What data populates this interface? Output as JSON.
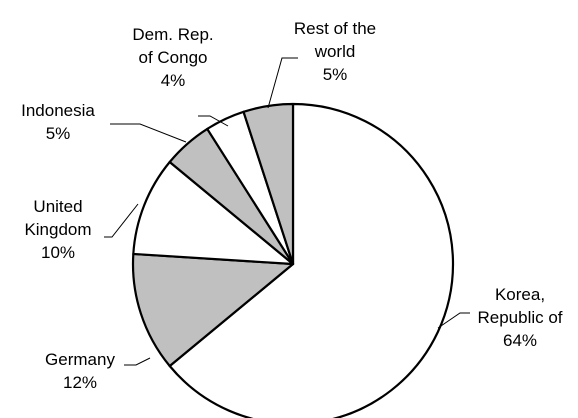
{
  "chart_data": {
    "type": "pie",
    "title": "",
    "start": "12 o'clock, clockwise",
    "slices": [
      {
        "category": "Korea, Republic of",
        "label_lines": [
          "Korea,",
          "Republic of"
        ],
        "pct_label": "64%",
        "value": 64,
        "fill": "#ffffff"
      },
      {
        "category": "Germany",
        "label_lines": [
          "Germany"
        ],
        "pct_label": "12%",
        "value": 12,
        "fill": "#c0c0c0"
      },
      {
        "category": "United Kingdom",
        "label_lines": [
          "United",
          "Kingdom"
        ],
        "pct_label": "10%",
        "value": 10,
        "fill": "#ffffff"
      },
      {
        "category": "Indonesia",
        "label_lines": [
          "Indonesia"
        ],
        "pct_label": "5%",
        "value": 5,
        "fill": "#c0c0c0"
      },
      {
        "category": "Dem. Rep. of Congo",
        "label_lines": [
          "Dem. Rep.",
          "of Congo"
        ],
        "pct_label": "4%",
        "value": 4,
        "fill": "#ffffff"
      },
      {
        "category": "Rest of the world",
        "label_lines": [
          "Rest of the",
          "world"
        ],
        "pct_label": "5%",
        "value": 5,
        "fill": "#c0c0c0"
      }
    ]
  }
}
